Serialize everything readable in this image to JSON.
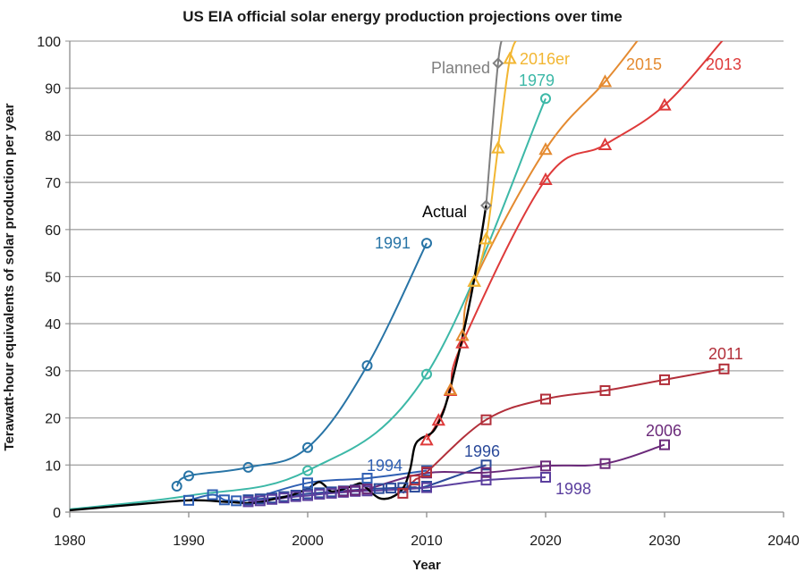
{
  "chart_data": {
    "type": "line",
    "title": "US EIA official solar energy production projections over time",
    "xlabel": "Year",
    "ylabel": "Terawatt-hour equivalents of solar production per year",
    "xlim": [
      1980,
      2040
    ],
    "ylim": [
      0,
      100
    ],
    "xticks": [
      1980,
      1990,
      2000,
      2010,
      2020,
      2030,
      2040
    ],
    "yticks": [
      0,
      10,
      20,
      30,
      40,
      50,
      60,
      70,
      80,
      90,
      100
    ],
    "grid": "horizontal",
    "legend": "inline labels",
    "series": [
      {
        "name": "1979",
        "label": "1979",
        "color": "#3cb8a7",
        "marker": "circle",
        "x": [
          1980,
          1990,
          2000,
          2010,
          2020
        ],
        "y": [
          0.6,
          3.5,
          8.8,
          29.3,
          87.8
        ],
        "markers_at": [
          2000,
          2010,
          2020
        ]
      },
      {
        "name": "1991",
        "label": "1991",
        "color": "#2874a6",
        "marker": "circle",
        "x": [
          1989,
          1990,
          1995,
          2000,
          2005,
          2010
        ],
        "y": [
          5.5,
          7.7,
          9.5,
          13.7,
          31.1,
          57.1
        ]
      },
      {
        "name": "1994",
        "label": "1994",
        "color": "#2f5fb3",
        "marker": "square",
        "x": [
          1990,
          1992,
          1993,
          1994,
          1995,
          2000,
          2005,
          2010
        ],
        "y": [
          2.5,
          3.7,
          2.6,
          2.4,
          2.6,
          6.2,
          7.2,
          8.8
        ]
      },
      {
        "name": "1996",
        "label": "1996",
        "color": "#2b4a9a",
        "marker": "square",
        "x": [
          1995,
          1996,
          1997,
          1998,
          1999,
          2000,
          2001,
          2002,
          2003,
          2004,
          2005,
          2006,
          2007,
          2008,
          2009,
          2010,
          2015
        ],
        "y": [
          2.6,
          2.8,
          3.0,
          3.3,
          3.6,
          3.9,
          4.1,
          4.3,
          4.5,
          4.7,
          4.9,
          5.0,
          5.1,
          5.2,
          5.3,
          5.5,
          10.0
        ]
      },
      {
        "name": "1998",
        "label": "1998",
        "color": "#5b3f9e",
        "marker": "square",
        "x": [
          1995,
          1996,
          1997,
          1998,
          1999,
          2000,
          2001,
          2002,
          2003,
          2004,
          2005,
          2010,
          2015,
          2020
        ],
        "y": [
          2.2,
          2.4,
          2.7,
          3.0,
          3.3,
          3.5,
          3.8,
          4.0,
          4.2,
          4.4,
          4.5,
          5.2,
          6.8,
          7.4
        ]
      },
      {
        "name": "2006",
        "label": "2006",
        "color": "#6b2a7a",
        "marker": "square",
        "x": [
          2003,
          2004,
          2005,
          2010,
          2015,
          2020,
          2025,
          2030
        ],
        "y": [
          4.4,
          4.6,
          4.9,
          8.3,
          8.4,
          9.8,
          10.3,
          14.3
        ]
      },
      {
        "name": "2011",
        "label": "2011",
        "color": "#b22f3a",
        "marker": "square",
        "x": [
          2008,
          2009,
          2010,
          2015,
          2020,
          2025,
          2030,
          2035
        ],
        "y": [
          4.0,
          6.8,
          8.5,
          19.6,
          24.0,
          25.8,
          28.1,
          30.4
        ]
      },
      {
        "name": "2013",
        "label": "2013",
        "color": "#de3a3a",
        "marker": "triangle",
        "x": [
          2010,
          2011,
          2012,
          2013,
          2020,
          2025,
          2030,
          2035
        ],
        "y": [
          15.3,
          19.5,
          25.8,
          35.9,
          70.6,
          78.0,
          86.4,
          100.5
        ]
      },
      {
        "name": "2015",
        "label": "2015",
        "color": "#e48a30",
        "marker": "triangle",
        "x": [
          2012,
          2013,
          2014,
          2020,
          2025,
          2028
        ],
        "y": [
          26.0,
          37.5,
          49.0,
          77.0,
          91.4,
          101.0
        ]
      },
      {
        "name": "2016er",
        "label": "2016er",
        "color": "#f2b632",
        "marker": "triangle",
        "x": [
          2014,
          2015,
          2016,
          2017,
          2017.8
        ],
        "y": [
          49.0,
          58.0,
          77.3,
          96.3,
          101.0
        ]
      },
      {
        "name": "Planned",
        "label": "Planned",
        "color": "#7f7f7f",
        "marker": "diamond",
        "x": [
          2015,
          2016,
          2016.5
        ],
        "y": [
          65.1,
          95.3,
          101.0
        ]
      },
      {
        "name": "Actual",
        "label": "Actual",
        "color": "#000000",
        "marker": "none",
        "x": [
          1980,
          1985,
          1990,
          1993,
          1995,
          1996,
          1997,
          1998,
          1999,
          2000,
          2000.5,
          2001,
          2001.5,
          2002,
          2003,
          2004,
          2004.5,
          2005,
          2006,
          2007,
          2008,
          2008.6,
          2009,
          2009.5,
          2010,
          2010.5,
          2011,
          2011.5,
          2012,
          2013,
          2014,
          2015
        ],
        "y": [
          0.4,
          1.5,
          2.5,
          2.2,
          1.9,
          2.1,
          2.7,
          3.2,
          3.9,
          5.0,
          5.8,
          6.4,
          5.5,
          4.4,
          4.9,
          5.8,
          6.1,
          5.0,
          3.0,
          3.1,
          5.0,
          9.0,
          14.0,
          15.6,
          16.2,
          17.0,
          19.0,
          22.0,
          26.5,
          37.0,
          49.5,
          65.1
        ]
      }
    ],
    "annotations": [
      {
        "text": "Planned",
        "series": "Planned"
      },
      {
        "text": "2016er",
        "series": "2016er"
      },
      {
        "text": "1979",
        "series": "1979"
      },
      {
        "text": "2015",
        "series": "2015"
      },
      {
        "text": "2013",
        "series": "2013"
      },
      {
        "text": "Actual",
        "series": "Actual"
      },
      {
        "text": "1991",
        "series": "1991"
      },
      {
        "text": "2011",
        "series": "2011"
      },
      {
        "text": "2006",
        "series": "2006"
      },
      {
        "text": "1994",
        "series": "1994"
      },
      {
        "text": "1996",
        "series": "1996"
      },
      {
        "text": "1998",
        "series": "1998"
      }
    ]
  }
}
